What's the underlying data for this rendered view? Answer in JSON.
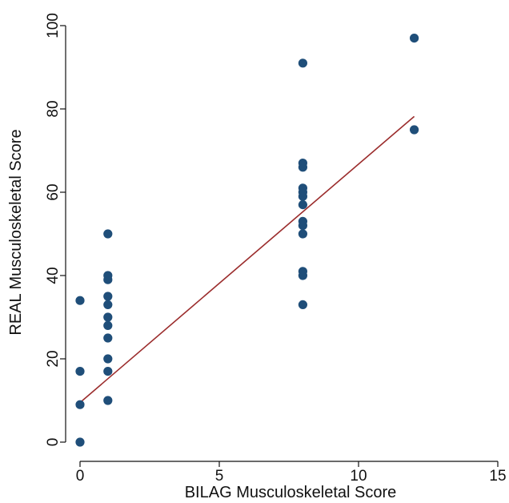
{
  "chart_data": {
    "type": "scatter",
    "title": "",
    "xlabel": "BILAG Musculoskeletal Score",
    "ylabel": "REAL Musculoskeletal Score",
    "xlim": [
      0,
      15
    ],
    "ylim": [
      0,
      100
    ],
    "x_ticks": [
      "0",
      "5",
      "10",
      "15"
    ],
    "y_ticks": [
      "0",
      "20",
      "40",
      "60",
      "80",
      "100"
    ],
    "grid": false,
    "legend": "none",
    "series": [
      {
        "type": "scatter",
        "color": "#1f4e79",
        "points": [
          {
            "x": 0,
            "y": 0
          },
          {
            "x": 0,
            "y": 9
          },
          {
            "x": 0,
            "y": 17
          },
          {
            "x": 0,
            "y": 34
          },
          {
            "x": 1,
            "y": 10
          },
          {
            "x": 1,
            "y": 17
          },
          {
            "x": 1,
            "y": 20
          },
          {
            "x": 1,
            "y": 25
          },
          {
            "x": 1,
            "y": 28
          },
          {
            "x": 1,
            "y": 30
          },
          {
            "x": 1,
            "y": 33
          },
          {
            "x": 1,
            "y": 35
          },
          {
            "x": 1,
            "y": 39
          },
          {
            "x": 1,
            "y": 40
          },
          {
            "x": 1,
            "y": 50
          },
          {
            "x": 8,
            "y": 33
          },
          {
            "x": 8,
            "y": 40
          },
          {
            "x": 8,
            "y": 41
          },
          {
            "x": 8,
            "y": 50
          },
          {
            "x": 8,
            "y": 52
          },
          {
            "x": 8,
            "y": 53
          },
          {
            "x": 8,
            "y": 57
          },
          {
            "x": 8,
            "y": 59
          },
          {
            "x": 8,
            "y": 60
          },
          {
            "x": 8,
            "y": 61
          },
          {
            "x": 8,
            "y": 66
          },
          {
            "x": 8,
            "y": 67
          },
          {
            "x": 8,
            "y": 91
          },
          {
            "x": 12,
            "y": 75
          },
          {
            "x": 12,
            "y": 97
          }
        ]
      },
      {
        "type": "line",
        "color": "#9b2c2c",
        "points": [
          {
            "x": 0,
            "y": 9.5
          },
          {
            "x": 12,
            "y": 78.2
          }
        ]
      }
    ]
  }
}
